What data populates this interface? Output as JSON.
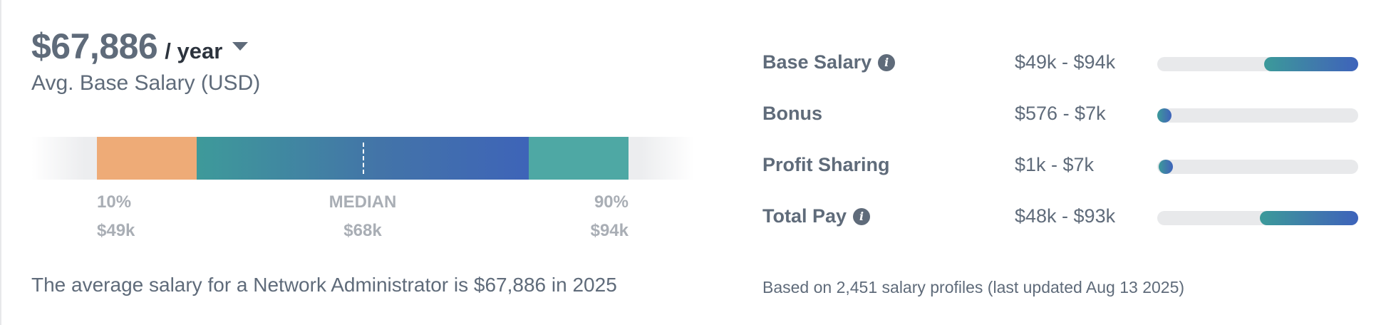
{
  "summary": {
    "amount": "$67,886",
    "period": "/ year",
    "subtitle": "Avg. Base Salary (USD)",
    "description": "The average salary for a Network Administrator is $67,886 in 2025"
  },
  "range_bar": {
    "p10_label": "10%",
    "p10_value": "$49k",
    "median_label": "MEDIAN",
    "median_value": "$68k",
    "p90_label": "90%",
    "p90_value": "$94k"
  },
  "breakdown": [
    {
      "label": "Base Salary",
      "range": "$49k - $94k",
      "has_info": true
    },
    {
      "label": "Bonus",
      "range": "$576 - $7k",
      "has_info": false
    },
    {
      "label": "Profit Sharing",
      "range": "$1k - $7k",
      "has_info": false
    },
    {
      "label": "Total Pay",
      "range": "$48k - $93k",
      "has_info": true
    }
  ],
  "footnote": "Based on 2,451 salary profiles (last updated Aug 13 2025)",
  "icons": {
    "info": "info-icon",
    "dropdown": "caret-down-icon"
  },
  "colors": {
    "text": "#5f6b7a",
    "low_segment": "#eeab77",
    "high_segment": "#4ea8a4",
    "gradient_start": "#3e9a9a",
    "gradient_end": "#3e64b8",
    "track": "#e8e9eb"
  }
}
